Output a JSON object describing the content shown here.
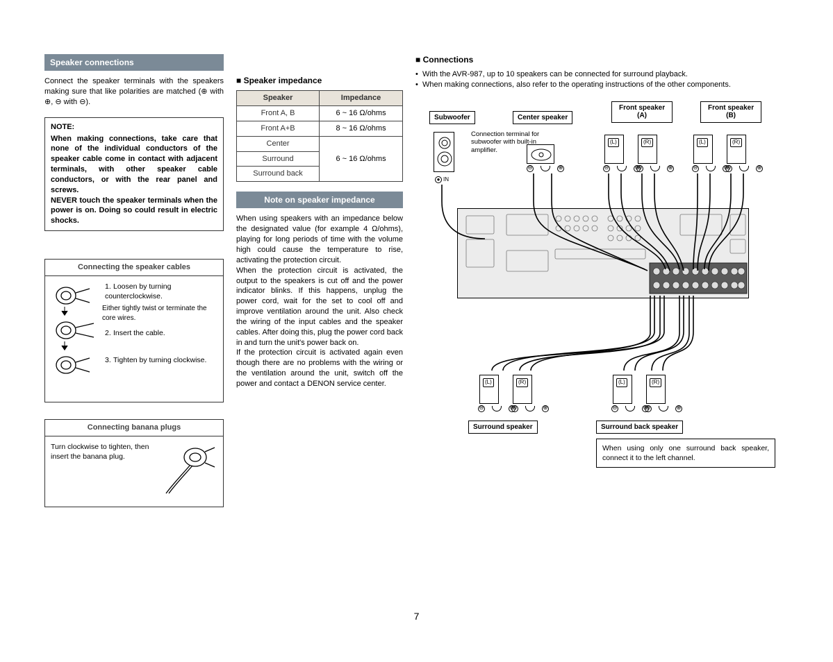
{
  "page_number": "7",
  "colors": {
    "bar_bg": "#7b8a97",
    "bar_fg": "#ffffff",
    "table_header_bg": "#e8e3da",
    "border": "#333333",
    "amp_bg": "#ececec"
  },
  "left": {
    "bar_title": "Speaker connections",
    "intro": "Connect the speaker terminals with the speakers making sure that like polarities are matched (⊕ with ⊕, ⊖ with ⊖).",
    "note_title": "NOTE:",
    "note_body": "When making connections, take care that none of the individual conductors of the speaker cable come in contact with adjacent terminals, with other speaker cable conductors, or with the rear panel and screws.\nNEVER touch the speaker terminals when the power is on. Doing so could result in electric shocks.",
    "panel1_title": "Connecting the speaker cables",
    "panel1_step1": "Loosen by turning counterclockwise.",
    "panel1_mid": "Either tightly twist or terminate the core wires.",
    "panel1_step2": "Insert the cable.",
    "panel1_step3": "Tighten by turning clockwise.",
    "panel2_title": "Connecting banana plugs",
    "panel2_text": "Turn clockwise to tighten, then insert the banana plug."
  },
  "mid": {
    "h_impedance": "Speaker impedance",
    "table": {
      "headers": [
        "Speaker",
        "Impedance"
      ],
      "rows": [
        [
          "Front A, B",
          "6 ~ 16 Ω/ohms"
        ],
        [
          "Front A+B",
          "8 ~ 16 Ω/ohms"
        ],
        [
          "Center",
          ""
        ],
        [
          "Surround",
          "6 ~ 16 Ω/ohms"
        ],
        [
          "Surround back",
          ""
        ]
      ],
      "merged_impedance": "6 ~ 16 Ω/ohms"
    },
    "note_bar": "Note on speaker impedance",
    "note_p1": "When using speakers with an impedance below the designated value (for example 4 Ω/ohms), playing for long periods of time with the volume high could cause the temperature to rise, activating the protection circuit.",
    "note_p2": "When the protection circuit is activated, the output to the speakers is cut off and the power indicator blinks. If this happens, unplug the power cord, wait for the set to cool off and improve ventilation around the unit. Also check the wiring of the input cables and the speaker cables. After doing this, plug the power cord back in and turn the unit's power back on.",
    "note_p3": "If the protection circuit is activated again even though there are no problems with the wiring or the ventilation around the unit, switch off the power and contact a DENON service center."
  },
  "right": {
    "h_connections": "Connections",
    "bullets": [
      "With the AVR-987, up to 10 speakers can be connected for surround playback.",
      "When making connections, also refer to the operating instructions of the other components."
    ],
    "labels": {
      "subwoofer": "Subwoofer",
      "center": "Center speaker",
      "front_a": "Front speaker\n(A)",
      "front_b": "Front speaker\n(B)",
      "surround": "Surround speaker",
      "surround_back": "Surround back speaker"
    },
    "sub_text": "Connection terminal for subwoofer with built-in amplifier.",
    "in_label": "IN",
    "lr": {
      "l": "(L)",
      "r": "(R)"
    },
    "polarity": {
      "minus": "⊖",
      "plus": "⊕"
    },
    "sb_note": "When using only one surround back speaker, connect it to the left channel."
  }
}
